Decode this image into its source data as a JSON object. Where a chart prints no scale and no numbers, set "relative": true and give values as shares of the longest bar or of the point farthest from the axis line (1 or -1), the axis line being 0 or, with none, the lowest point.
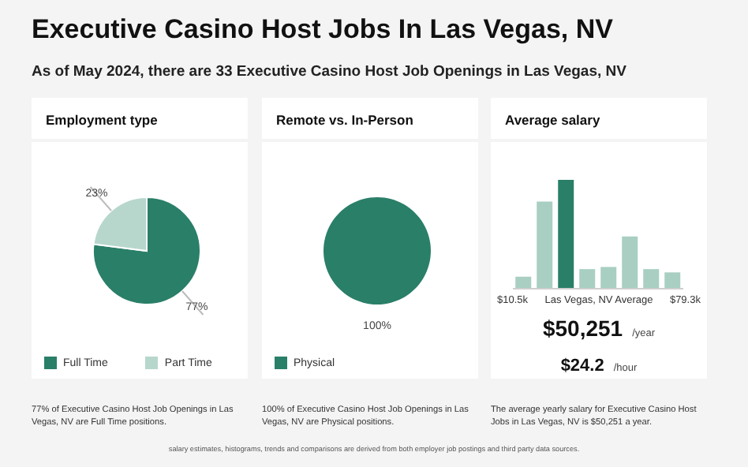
{
  "chart_data": [
    {
      "type": "other",
      "title": "Executive Casino Host Jobs In Las Vegas, NV",
      "subtitle": "As of May 2024, there are 33 Executive Casino Host Job Openings in Las Vegas, NV",
      "annotations": [
        "salary estimates, histograms, trends and comparisons are derived from both employer job postings and third party data sources."
      ]
    },
    {
      "type": "pie",
      "title": "Employment type",
      "categories": [
        "Full Time",
        "Part Time"
      ],
      "values": [
        77,
        23
      ],
      "colors": [
        "#2a7f68",
        "#b7d7cc"
      ],
      "value_labels": [
        "77%",
        "23%"
      ],
      "legend": "bottom",
      "annotations": [
        "77% of Executive Casino Host Job Openings in Las Vegas, NV are Full Time positions."
      ]
    },
    {
      "type": "pie",
      "title": "Remote vs. In-Person",
      "categories": [
        "Physical"
      ],
      "values": [
        100
      ],
      "colors": [
        "#2a7f68"
      ],
      "value_labels": [
        "100%"
      ],
      "legend": "bottom",
      "annotations": [
        "100% of Executive Casino Host Job Openings in Las Vegas, NV are Physical positions."
      ]
    },
    {
      "type": "bar",
      "title": "Average salary",
      "relative": true,
      "categories": [
        null,
        null,
        null,
        null,
        null,
        null,
        null,
        null
      ],
      "values": [
        0.11,
        0.8,
        1,
        0.18,
        0.2,
        0.48,
        0.18,
        0.15
      ],
      "colors": [
        "#a8cfc2",
        "#a8cfc2",
        "#2a7f68",
        "#a8cfc2",
        "#a8cfc2",
        "#a8cfc2",
        "#a8cfc2",
        "#a8cfc2"
      ],
      "annotations": [
        "$10.5k",
        "Las Vegas, NV Average",
        "$79.3k",
        "$50,251",
        "/year",
        "$24.2",
        "/hour",
        "The average yearly salary for Executive Casino Host Jobs in Las Vegas, NV is $50,251 a year."
      ]
    }
  ]
}
